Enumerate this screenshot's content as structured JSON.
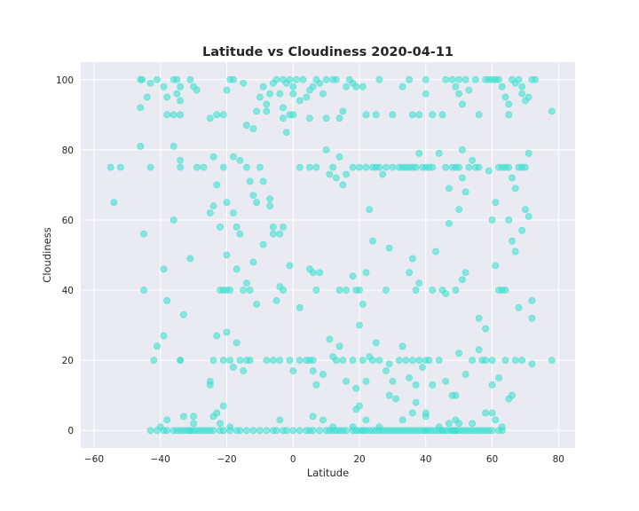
{
  "chart_data": {
    "type": "scatter",
    "title": "Latitude vs Cloudiness 2020-04-11",
    "xlabel": "Latitude",
    "ylabel": "Cloudiness",
    "xlim": [
      -64,
      85
    ],
    "ylim": [
      -5,
      105
    ],
    "xticks": [
      -60,
      -40,
      -20,
      0,
      20,
      40,
      60,
      80
    ],
    "yticks": [
      0,
      20,
      40,
      60,
      80,
      100
    ],
    "grid": true,
    "background": "#eaeaf2",
    "point_color": "#40e0d0",
    "point_opacity": 0.6,
    "points": [
      [
        -46,
        100
      ],
      [
        -45.5,
        100
      ],
      [
        -46,
        92
      ],
      [
        -44,
        95
      ],
      [
        -43,
        99
      ],
      [
        -41,
        100
      ],
      [
        -39,
        98
      ],
      [
        -38,
        95
      ],
      [
        -38,
        90
      ],
      [
        -36,
        100
      ],
      [
        -35,
        100
      ],
      [
        -35,
        96
      ],
      [
        -34,
        98
      ],
      [
        -34,
        94
      ],
      [
        -34,
        90
      ],
      [
        -36,
        90
      ],
      [
        -31,
        100
      ],
      [
        -30,
        98
      ],
      [
        -29,
        97
      ],
      [
        -25,
        89
      ],
      [
        -23,
        90
      ],
      [
        -21,
        90
      ],
      [
        -20,
        97
      ],
      [
        -19,
        100
      ],
      [
        -18,
        100
      ],
      [
        -15,
        99
      ],
      [
        -14,
        87
      ],
      [
        -12,
        86
      ],
      [
        -10,
        95
      ],
      [
        -9,
        98
      ],
      [
        -8,
        93
      ],
      [
        -7,
        96
      ],
      [
        -6,
        99
      ],
      [
        -5,
        100
      ],
      [
        -4,
        96
      ],
      [
        -3,
        100
      ],
      [
        -2,
        99
      ],
      [
        -1,
        100
      ],
      [
        0,
        98
      ],
      [
        0,
        96
      ],
      [
        1,
        100
      ],
      [
        2,
        94
      ],
      [
        3,
        100
      ],
      [
        4,
        95
      ],
      [
        5,
        97
      ],
      [
        6,
        98
      ],
      [
        7,
        100
      ],
      [
        8,
        99
      ],
      [
        9,
        96
      ],
      [
        10,
        100
      ],
      [
        12,
        100
      ],
      [
        13,
        100
      ],
      [
        14,
        89
      ],
      [
        15,
        91
      ],
      [
        16,
        98
      ],
      [
        17,
        100
      ],
      [
        18,
        99
      ],
      [
        19,
        98
      ],
      [
        21,
        98
      ],
      [
        22,
        90
      ],
      [
        25,
        90
      ],
      [
        26,
        100
      ],
      [
        30,
        90
      ],
      [
        33,
        98
      ],
      [
        35,
        100
      ],
      [
        36,
        90
      ],
      [
        38,
        90
      ],
      [
        40,
        100
      ],
      [
        40,
        96
      ],
      [
        42,
        90
      ],
      [
        45,
        90
      ],
      [
        46,
        100
      ],
      [
        48,
        100
      ],
      [
        49,
        98
      ],
      [
        50,
        100
      ],
      [
        50,
        96
      ],
      [
        51,
        93
      ],
      [
        52,
        100
      ],
      [
        53,
        97
      ],
      [
        55,
        100
      ],
      [
        56,
        90
      ],
      [
        58,
        100
      ],
      [
        59,
        100
      ],
      [
        60,
        100
      ],
      [
        61,
        100
      ],
      [
        62,
        100
      ],
      [
        63,
        98
      ],
      [
        64,
        95
      ],
      [
        65,
        93
      ],
      [
        65,
        90
      ],
      [
        66,
        100
      ],
      [
        67,
        99
      ],
      [
        68,
        100
      ],
      [
        69,
        98
      ],
      [
        69,
        96
      ],
      [
        70,
        94
      ],
      [
        71,
        95
      ],
      [
        72,
        100
      ],
      [
        73,
        100
      ],
      [
        78,
        91
      ],
      [
        -11,
        91
      ],
      [
        -8,
        91
      ],
      [
        -3,
        92
      ],
      [
        -3,
        89
      ],
      [
        -2,
        85
      ],
      [
        5,
        89
      ],
      [
        10,
        89
      ],
      [
        -1,
        90
      ],
      [
        -55,
        75
      ],
      [
        -52,
        75
      ],
      [
        -46,
        81
      ],
      [
        -43,
        75
      ],
      [
        -36,
        81
      ],
      [
        -34,
        77
      ],
      [
        -34,
        75
      ],
      [
        -29,
        75
      ],
      [
        -24,
        78
      ],
      [
        -18,
        78
      ],
      [
        -16,
        77
      ],
      [
        -14,
        75
      ],
      [
        -13,
        71
      ],
      [
        -12,
        67
      ],
      [
        -11,
        65
      ],
      [
        -10,
        75
      ],
      [
        -9,
        71
      ],
      [
        -7,
        66
      ],
      [
        -6,
        58
      ],
      [
        -4,
        56
      ],
      [
        -3,
        58
      ],
      [
        0,
        90
      ],
      [
        2,
        75
      ],
      [
        5,
        75
      ],
      [
        7,
        75
      ],
      [
        10,
        80
      ],
      [
        11,
        73
      ],
      [
        12,
        75
      ],
      [
        13,
        72
      ],
      [
        14,
        78
      ],
      [
        15,
        70
      ],
      [
        16,
        73
      ],
      [
        18,
        75
      ],
      [
        20,
        75
      ],
      [
        22,
        75
      ],
      [
        23,
        63
      ],
      [
        24,
        75
      ],
      [
        25,
        75
      ],
      [
        26,
        75
      ],
      [
        27,
        73
      ],
      [
        28,
        75
      ],
      [
        30,
        75
      ],
      [
        32,
        75
      ],
      [
        33,
        75
      ],
      [
        34,
        75
      ],
      [
        35,
        75
      ],
      [
        36,
        75
      ],
      [
        37,
        75
      ],
      [
        38,
        79
      ],
      [
        39,
        75
      ],
      [
        40,
        75
      ],
      [
        41,
        75
      ],
      [
        42,
        75
      ],
      [
        44,
        79
      ],
      [
        46,
        75
      ],
      [
        47,
        69
      ],
      [
        48,
        75
      ],
      [
        49,
        75
      ],
      [
        50,
        75
      ],
      [
        51,
        80
      ],
      [
        51,
        72
      ],
      [
        52,
        68
      ],
      [
        53,
        75
      ],
      [
        54,
        77
      ],
      [
        55,
        75
      ],
      [
        56,
        75
      ],
      [
        59,
        74
      ],
      [
        61,
        65
      ],
      [
        62,
        75
      ],
      [
        63,
        75
      ],
      [
        64,
        75
      ],
      [
        65,
        75
      ],
      [
        66,
        72
      ],
      [
        67,
        69
      ],
      [
        68,
        75
      ],
      [
        69,
        75
      ],
      [
        70,
        75
      ],
      [
        71,
        79
      ],
      [
        -21,
        75
      ],
      [
        -25,
        62
      ],
      [
        -20,
        65
      ],
      [
        -17,
        58
      ],
      [
        -54,
        65
      ],
      [
        -27,
        75
      ],
      [
        -24,
        64
      ],
      [
        -45,
        56
      ],
      [
        -45,
        40
      ],
      [
        -36,
        60
      ],
      [
        -39,
        46
      ],
      [
        -38,
        37
      ],
      [
        -31,
        49
      ],
      [
        -23,
        70
      ],
      [
        -22,
        58
      ],
      [
        -20,
        50
      ],
      [
        -19,
        40
      ],
      [
        -18,
        62
      ],
      [
        -17,
        46
      ],
      [
        -16,
        56
      ],
      [
        -15,
        40
      ],
      [
        -14,
        42
      ],
      [
        -13,
        40
      ],
      [
        -12,
        48
      ],
      [
        -11,
        36
      ],
      [
        -9,
        53
      ],
      [
        -7,
        64
      ],
      [
        -6,
        56
      ],
      [
        -5,
        37
      ],
      [
        -4,
        41
      ],
      [
        -3,
        40
      ],
      [
        -1,
        47
      ],
      [
        2,
        35
      ],
      [
        5,
        46
      ],
      [
        6,
        45
      ],
      [
        7,
        40
      ],
      [
        8,
        45
      ],
      [
        14,
        40
      ],
      [
        16,
        40
      ],
      [
        18,
        44
      ],
      [
        19,
        40
      ],
      [
        20,
        40
      ],
      [
        21,
        36
      ],
      [
        22,
        45
      ],
      [
        24,
        54
      ],
      [
        28,
        40
      ],
      [
        29,
        52
      ],
      [
        35,
        45
      ],
      [
        36,
        49
      ],
      [
        37,
        40
      ],
      [
        38,
        42
      ],
      [
        42,
        40
      ],
      [
        43,
        51
      ],
      [
        45,
        40
      ],
      [
        46,
        39
      ],
      [
        47,
        59
      ],
      [
        49,
        40
      ],
      [
        50,
        63
      ],
      [
        51,
        43
      ],
      [
        52,
        45
      ],
      [
        56,
        32
      ],
      [
        58,
        29
      ],
      [
        60,
        60
      ],
      [
        61,
        47
      ],
      [
        62,
        40
      ],
      [
        63,
        40
      ],
      [
        64,
        40
      ],
      [
        65,
        60
      ],
      [
        66,
        54
      ],
      [
        67,
        51
      ],
      [
        68,
        35
      ],
      [
        69,
        57
      ],
      [
        70,
        63
      ],
      [
        71,
        61
      ],
      [
        72,
        37
      ],
      [
        72,
        32
      ],
      [
        -21,
        40
      ],
      [
        -20,
        40
      ],
      [
        -22,
        40
      ],
      [
        -33,
        33
      ],
      [
        -42,
        20
      ],
      [
        -41,
        24
      ],
      [
        -39,
        27
      ],
      [
        -34,
        20
      ],
      [
        -25,
        14
      ],
      [
        -25,
        13
      ],
      [
        -23,
        27
      ],
      [
        -21,
        20
      ],
      [
        -20,
        28
      ],
      [
        -19,
        20
      ],
      [
        -18,
        18
      ],
      [
        -17,
        25
      ],
      [
        -16,
        20
      ],
      [
        -15,
        17
      ],
      [
        -14,
        20
      ],
      [
        -13,
        20
      ],
      [
        -8,
        20
      ],
      [
        -6,
        20
      ],
      [
        -4,
        20
      ],
      [
        -1,
        20
      ],
      [
        0,
        17
      ],
      [
        2,
        20
      ],
      [
        4,
        20
      ],
      [
        5,
        20
      ],
      [
        6,
        20
      ],
      [
        6,
        17
      ],
      [
        7,
        13
      ],
      [
        9,
        16
      ],
      [
        11,
        26
      ],
      [
        12,
        21
      ],
      [
        13,
        20
      ],
      [
        14,
        24
      ],
      [
        15,
        20
      ],
      [
        16,
        14
      ],
      [
        18,
        20
      ],
      [
        19,
        12
      ],
      [
        20,
        30
      ],
      [
        21,
        20
      ],
      [
        22,
        14
      ],
      [
        23,
        21
      ],
      [
        24,
        20
      ],
      [
        25,
        25
      ],
      [
        26,
        20
      ],
      [
        28,
        17
      ],
      [
        29,
        19
      ],
      [
        30,
        14
      ],
      [
        32,
        20
      ],
      [
        33,
        24
      ],
      [
        34,
        20
      ],
      [
        35,
        15
      ],
      [
        36,
        20
      ],
      [
        37,
        13
      ],
      [
        38,
        20
      ],
      [
        39,
        18
      ],
      [
        40,
        20
      ],
      [
        41,
        20
      ],
      [
        42,
        13
      ],
      [
        44,
        20
      ],
      [
        46,
        14
      ],
      [
        48,
        10
      ],
      [
        49,
        10
      ],
      [
        50,
        22
      ],
      [
        52,
        16
      ],
      [
        54,
        20
      ],
      [
        56,
        23
      ],
      [
        57,
        20
      ],
      [
        58,
        20
      ],
      [
        60,
        20
      ],
      [
        62,
        15
      ],
      [
        64,
        20
      ],
      [
        65,
        9
      ],
      [
        66,
        10
      ],
      [
        67,
        20
      ],
      [
        69,
        20
      ],
      [
        72,
        19
      ],
      [
        78,
        20
      ],
      [
        -23,
        5
      ],
      [
        -21,
        7
      ],
      [
        -34,
        20
      ],
      [
        -24,
        20
      ]
    ],
    "zero_points": [
      -43,
      -41,
      -39,
      -38,
      -36,
      -35,
      -34,
      -33,
      -32,
      -31,
      -30,
      -29,
      -28,
      -27,
      -26,
      -25,
      -24,
      -22,
      -21,
      -19,
      -17,
      -16,
      -14,
      -12,
      -10,
      -8,
      -6,
      -5,
      -3,
      -2,
      0,
      2,
      4,
      6,
      8,
      10,
      12,
      13,
      14,
      15,
      16,
      18,
      19,
      20,
      21,
      22,
      23,
      24,
      25,
      26,
      27,
      28,
      29,
      30,
      31,
      32,
      33,
      34,
      36,
      37,
      38,
      39,
      40,
      41,
      42,
      43,
      44,
      45,
      46,
      47,
      48,
      49,
      50,
      51,
      52,
      53,
      54,
      55,
      56,
      57,
      58,
      59,
      60,
      62,
      63,
      -31,
      5,
      11,
      21,
      35,
      40,
      45,
      48,
      49
    ],
    "low_points": [
      [
        -40,
        1
      ],
      [
        -38,
        3
      ],
      [
        -33,
        4
      ],
      [
        -30,
        4
      ],
      [
        -30,
        2
      ],
      [
        -24,
        4
      ],
      [
        -22,
        2
      ],
      [
        -19,
        1
      ],
      [
        -4,
        3
      ],
      [
        6,
        4
      ],
      [
        9,
        3
      ],
      [
        12,
        1
      ],
      [
        18,
        1
      ],
      [
        19,
        6
      ],
      [
        20,
        7
      ],
      [
        22,
        3
      ],
      [
        26,
        1
      ],
      [
        29,
        10
      ],
      [
        31,
        9
      ],
      [
        33,
        3
      ],
      [
        36,
        5
      ],
      [
        37,
        8
      ],
      [
        40,
        4
      ],
      [
        40,
        5
      ],
      [
        44,
        1
      ],
      [
        47,
        2
      ],
      [
        49,
        3
      ],
      [
        50,
        2
      ],
      [
        54,
        2
      ],
      [
        60,
        5
      ],
      [
        61,
        3
      ],
      [
        63,
        1
      ],
      [
        60,
        13
      ],
      [
        58,
        5
      ]
    ]
  }
}
